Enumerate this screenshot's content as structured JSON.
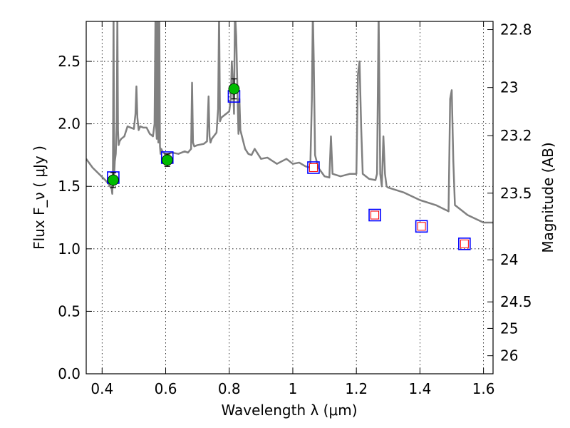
{
  "chart_data": {
    "type": "scatter",
    "xlabel": "Wavelength  λ (μm)",
    "ylabel": "Flux  F_ν  ( μJy )",
    "y2label": "Magnitude (AB)",
    "xlim": [
      0.35,
      1.63
    ],
    "ylim": [
      0.0,
      2.82
    ],
    "x_ticks": [
      0.4,
      0.6,
      0.8,
      1.0,
      1.2,
      1.4,
      1.6
    ],
    "x_tick_labels": [
      "0.4",
      "0.6",
      "0.8",
      "1",
      "1.2",
      "1.4",
      "1.6"
    ],
    "y_ticks": [
      0.0,
      0.5,
      1.0,
      1.5,
      2.0,
      2.5
    ],
    "y_tick_labels": [
      "0.0",
      "0.5",
      "1.0",
      "1.5",
      "2.0",
      "2.5"
    ],
    "y2_tick_labels": [
      "22.8",
      "23",
      "23.2",
      "23.5",
      "24",
      "24.5",
      "25",
      "26"
    ],
    "grid": true,
    "colors": {
      "model": "#808080",
      "observed": "#00bb00",
      "model_box": "#0000ff",
      "model_inner": "#ff0000",
      "axis": "#000000"
    },
    "series": [
      {
        "marker": "filled-circle",
        "x": [
          0.435,
          0.605,
          0.815
        ],
        "y": [
          1.55,
          1.71,
          2.28
        ],
        "yerr": [
          0.06,
          0.05,
          0.08
        ]
      },
      {
        "marker": "open-square",
        "x": [
          0.435,
          0.605,
          0.815,
          1.065,
          1.258,
          1.405,
          1.54
        ],
        "y": [
          1.57,
          1.73,
          2.22,
          1.65,
          1.27,
          1.18,
          1.04
        ]
      },
      {
        "marker": "small-open-square",
        "x": [
          1.065,
          1.258,
          1.405,
          1.54
        ],
        "y": [
          1.65,
          1.27,
          1.18,
          1.04
        ]
      },
      {
        "marker": "line",
        "x": [
          0.35,
          0.37,
          0.39,
          0.41,
          0.42,
          0.425,
          0.43,
          0.432,
          0.434,
          0.436,
          0.438,
          0.44,
          0.443,
          0.446,
          0.448,
          0.45,
          0.452,
          0.455,
          0.46,
          0.47,
          0.48,
          0.49,
          0.5,
          0.505,
          0.508,
          0.511,
          0.515,
          0.52,
          0.53,
          0.54,
          0.55,
          0.56,
          0.565,
          0.568,
          0.57,
          0.572,
          0.574,
          0.577,
          0.58,
          0.582,
          0.584,
          0.586,
          0.59,
          0.6,
          0.62,
          0.64,
          0.66,
          0.67,
          0.68,
          0.683,
          0.686,
          0.69,
          0.7,
          0.72,
          0.73,
          0.735,
          0.738,
          0.741,
          0.745,
          0.76,
          0.765,
          0.768,
          0.771,
          0.775,
          0.79,
          0.8,
          0.805,
          0.808,
          0.812,
          0.815,
          0.818,
          0.822,
          0.826,
          0.829,
          0.832,
          0.835,
          0.84,
          0.85,
          0.86,
          0.87,
          0.88,
          0.9,
          0.92,
          0.95,
          0.98,
          1.0,
          1.02,
          1.04,
          1.055,
          1.06,
          1.063,
          1.066,
          1.07,
          1.08,
          1.1,
          1.115,
          1.12,
          1.125,
          1.15,
          1.18,
          1.2,
          1.205,
          1.21,
          1.215,
          1.22,
          1.24,
          1.26,
          1.265,
          1.27,
          1.275,
          1.28,
          1.285,
          1.29,
          1.295,
          1.3,
          1.35,
          1.4,
          1.45,
          1.49,
          1.495,
          1.5,
          1.505,
          1.51,
          1.55,
          1.6,
          1.63
        ],
        "y": [
          1.72,
          1.65,
          1.6,
          1.55,
          1.52,
          1.5,
          1.48,
          1.44,
          1.6,
          2.9,
          1.6,
          1.7,
          1.76,
          2.0,
          2.9,
          1.95,
          1.83,
          1.86,
          1.88,
          1.9,
          1.98,
          1.97,
          1.96,
          2.08,
          2.3,
          2.05,
          1.95,
          1.98,
          1.97,
          1.97,
          1.92,
          1.9,
          2.0,
          2.9,
          1.98,
          1.88,
          2.9,
          1.85,
          2.9,
          1.82,
          1.76,
          1.8,
          1.78,
          1.75,
          1.77,
          1.76,
          1.78,
          1.77,
          1.8,
          2.33,
          1.85,
          1.82,
          1.83,
          1.84,
          1.86,
          2.22,
          1.9,
          1.85,
          1.88,
          1.93,
          2.12,
          2.9,
          2.02,
          2.05,
          2.08,
          2.1,
          2.2,
          2.5,
          2.3,
          2.08,
          2.9,
          2.7,
          2.25,
          1.92,
          2.2,
          1.95,
          1.9,
          1.8,
          1.76,
          1.75,
          1.8,
          1.72,
          1.73,
          1.68,
          1.72,
          1.68,
          1.69,
          1.66,
          1.65,
          2.2,
          2.9,
          2.5,
          1.75,
          1.65,
          1.58,
          1.57,
          1.9,
          1.6,
          1.58,
          1.6,
          1.6,
          2.4,
          2.5,
          1.98,
          1.6,
          1.56,
          1.55,
          1.6,
          2.9,
          1.6,
          1.5,
          1.9,
          1.6,
          1.5,
          1.49,
          1.45,
          1.39,
          1.35,
          1.3,
          2.2,
          2.27,
          1.7,
          1.35,
          1.27,
          1.21,
          1.21
        ]
      }
    ]
  }
}
